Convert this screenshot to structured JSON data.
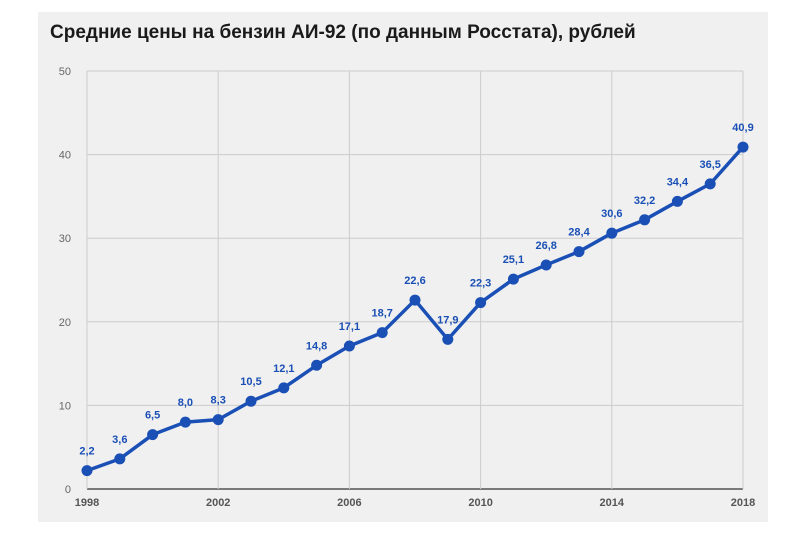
{
  "chart_data": {
    "type": "line",
    "title": "Средние цены на бензин АИ-92 (по данным Росстата), рублей",
    "xlabel": "",
    "ylabel": "",
    "x": [
      1998,
      1999,
      2000,
      2001,
      2002,
      2003,
      2004,
      2005,
      2006,
      2007,
      2008,
      2009,
      2010,
      2011,
      2012,
      2013,
      2014,
      2015,
      2016,
      2017,
      2018
    ],
    "values": [
      2.2,
      3.6,
      6.5,
      8.0,
      8.3,
      10.5,
      12.1,
      14.8,
      17.1,
      18.7,
      22.6,
      17.9,
      22.3,
      25.1,
      26.8,
      28.4,
      30.6,
      32.2,
      34.4,
      36.5,
      40.9
    ],
    "data_labels": [
      "2,2",
      "3,6",
      "6,5",
      "8,0",
      "8,3",
      "10,5",
      "12,1",
      "14,8",
      "17,1",
      "18,7",
      "22,6",
      "17,9",
      "22,3",
      "25,1",
      "26,8",
      "28,4",
      "30,6",
      "32,2",
      "34,4",
      "36,5",
      "40,9"
    ],
    "xticks": [
      "1998",
      "2002",
      "2006",
      "2010",
      "2014",
      "2018"
    ],
    "yticks": [
      "0",
      "10",
      "20",
      "30",
      "40",
      "50"
    ],
    "xlim": [
      1998,
      2018
    ],
    "ylim": [
      0,
      50
    ],
    "grid": true,
    "legend": "none",
    "line_color": "#1a4fb5",
    "label_color": "#1a4fb5"
  }
}
